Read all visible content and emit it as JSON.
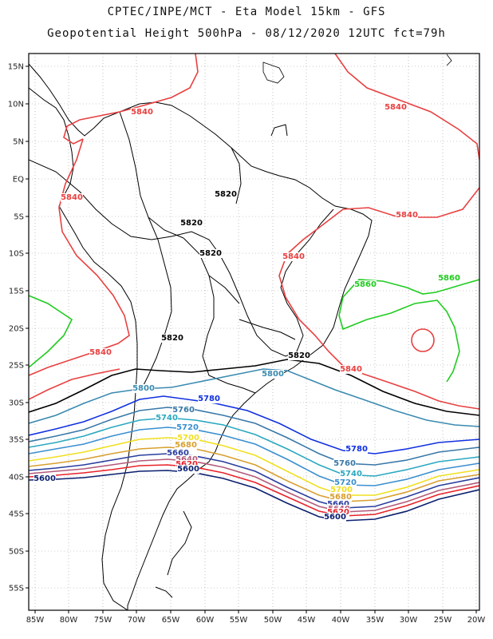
{
  "header": {
    "line1": "CPTEC/INPE/MCT -  Eta Model 15km - GFS",
    "line2": "Geopotential Height 500hPa - 08/12/2020 12UTC fct=79h"
  },
  "axes": {
    "lat_labels": [
      "15N",
      "10N",
      "5N",
      "EQ",
      "5S",
      "10S",
      "15S",
      "20S",
      "25S",
      "30S",
      "35S",
      "40S",
      "45S",
      "50S",
      "55S"
    ],
    "lon_labels": [
      "85W",
      "80W",
      "75W",
      "70W",
      "65W",
      "60W",
      "55W",
      "50W",
      "45W",
      "40W",
      "35W",
      "30W",
      "25W",
      "20W"
    ]
  },
  "colors": {
    "c5600": "#0a1f6e",
    "c5620": "#e8222a",
    "c5640": "#b35a7a",
    "c5660": "#2a3d9e",
    "c5680": "#d8a030",
    "c5700": "#f0e020",
    "c5720": "#3a8fd0",
    "c5740": "#2aa8c0",
    "c5760": "#3878a8",
    "c5780": "#1030e0",
    "c5800": "#3a8ab0",
    "c5820": "#000000",
    "c5840": "#e84040",
    "c5860": "#20cc20"
  },
  "contour_labels": [
    {
      "text": "5840",
      "color": "c5840"
    },
    {
      "text": "5840",
      "color": "c5840"
    },
    {
      "text": "5840",
      "color": "c5840"
    },
    {
      "text": "5840",
      "color": "c5840"
    },
    {
      "text": "5840",
      "color": "c5840"
    },
    {
      "text": "5840",
      "color": "c5840"
    },
    {
      "text": "5840",
      "color": "c5840"
    },
    {
      "text": "5820",
      "color": "c5820"
    },
    {
      "text": "5820",
      "color": "c5820"
    },
    {
      "text": "5820",
      "color": "c5820"
    },
    {
      "text": "5820",
      "color": "c5820"
    },
    {
      "text": "5820",
      "color": "c5820"
    },
    {
      "text": "5860",
      "color": "c5860"
    },
    {
      "text": "5860",
      "color": "c5860"
    },
    {
      "text": "5800",
      "color": "c5800"
    },
    {
      "text": "5800",
      "color": "c5800"
    },
    {
      "text": "5780",
      "color": "c5780"
    },
    {
      "text": "5780",
      "color": "c5780"
    },
    {
      "text": "5760",
      "color": "c5760"
    },
    {
      "text": "5760",
      "color": "c5760"
    },
    {
      "text": "5740",
      "color": "c5740"
    },
    {
      "text": "5740",
      "color": "c5740"
    },
    {
      "text": "5720",
      "color": "c5720"
    },
    {
      "text": "5720",
      "color": "c5720"
    },
    {
      "text": "5700",
      "color": "c5700"
    },
    {
      "text": "5700",
      "color": "c5700"
    },
    {
      "text": "5680",
      "color": "c5680"
    },
    {
      "text": "5680",
      "color": "c5680"
    },
    {
      "text": "5660",
      "color": "c5660"
    },
    {
      "text": "5660",
      "color": "c5660"
    },
    {
      "text": "5640",
      "color": "c5640"
    },
    {
      "text": "5640",
      "color": "c5640"
    },
    {
      "text": "5620",
      "color": "c5620"
    },
    {
      "text": "5620",
      "color": "c5620"
    },
    {
      "text": "5600",
      "color": "c5600"
    },
    {
      "text": "5600",
      "color": "c5600"
    },
    {
      "text": "5600",
      "color": "c5600"
    }
  ]
}
